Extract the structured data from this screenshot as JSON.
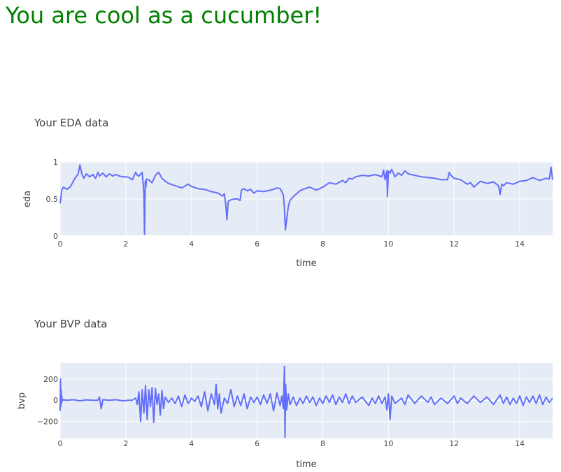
{
  "headline": {
    "text": "You are cool as a cucumber!",
    "color": "#008000"
  },
  "colors": {
    "trace": "#636efa",
    "plot_bg": "#e5ecf6",
    "grid": "#ffffff",
    "text": "#444444"
  },
  "chart_data": [
    {
      "type": "line",
      "title": "Your EDA data",
      "xlabel": "time",
      "ylabel": "eda",
      "xlim": [
        0,
        15
      ],
      "ylim": [
        0,
        1
      ],
      "xticks": [
        0,
        2,
        4,
        6,
        8,
        10,
        12,
        14
      ],
      "xtick_labels": [
        "0",
        "2",
        "4",
        "6",
        "8",
        "10",
        "12",
        "14"
      ],
      "yticks": [
        0,
        0.5,
        1
      ],
      "ytick_labels": [
        "0",
        "0.5",
        "1"
      ],
      "grid": true,
      "x": [
        0,
        0.05,
        0.1,
        0.2,
        0.3,
        0.38,
        0.45,
        0.55,
        0.6,
        0.66,
        0.72,
        0.8,
        0.9,
        1.0,
        1.08,
        1.15,
        1.2,
        1.3,
        1.4,
        1.5,
        1.6,
        1.7,
        1.8,
        1.9,
        2.0,
        2.1,
        2.2,
        2.3,
        2.35,
        2.4,
        2.5,
        2.55,
        2.57,
        2.59,
        2.61,
        2.63,
        2.7,
        2.8,
        2.9,
        3.0,
        3.1,
        3.2,
        3.3,
        3.5,
        3.7,
        3.9,
        4.0,
        4.2,
        4.4,
        4.6,
        4.8,
        4.95,
        5.0,
        5.05,
        5.08,
        5.12,
        5.2,
        5.3,
        5.4,
        5.48,
        5.52,
        5.6,
        5.7,
        5.8,
        5.9,
        6.0,
        6.2,
        6.4,
        6.5,
        6.6,
        6.7,
        6.75,
        6.8,
        6.83,
        6.86,
        6.9,
        6.95,
        7.0,
        7.1,
        7.2,
        7.3,
        7.4,
        7.6,
        7.8,
        8.0,
        8.2,
        8.4,
        8.6,
        8.7,
        8.8,
        8.9,
        9.0,
        9.2,
        9.4,
        9.6,
        9.8,
        9.85,
        9.9,
        9.95,
        9.97,
        10.0,
        10.05,
        10.1,
        10.2,
        10.3,
        10.4,
        10.5,
        10.6,
        10.8,
        11.0,
        11.2,
        11.4,
        11.6,
        11.8,
        11.85,
        11.9,
        12.0,
        12.2,
        12.4,
        12.5,
        12.6,
        12.8,
        13.0,
        13.2,
        13.35,
        13.4,
        13.45,
        13.5,
        13.6,
        13.8,
        14.0,
        14.2,
        14.4,
        14.6,
        14.8,
        14.9,
        14.95,
        15.0
      ],
      "series": [
        {
          "values": [
            0.44,
            0.62,
            0.66,
            0.63,
            0.66,
            0.72,
            0.78,
            0.84,
            0.96,
            0.84,
            0.78,
            0.84,
            0.8,
            0.83,
            0.78,
            0.86,
            0.81,
            0.85,
            0.8,
            0.84,
            0.81,
            0.83,
            0.81,
            0.8,
            0.8,
            0.79,
            0.76,
            0.86,
            0.82,
            0.81,
            0.86,
            0.58,
            0.02,
            0.74,
            0.66,
            0.77,
            0.76,
            0.72,
            0.82,
            0.86,
            0.78,
            0.74,
            0.71,
            0.68,
            0.65,
            0.7,
            0.67,
            0.64,
            0.63,
            0.6,
            0.58,
            0.54,
            0.57,
            0.4,
            0.22,
            0.47,
            0.49,
            0.5,
            0.5,
            0.48,
            0.62,
            0.64,
            0.61,
            0.63,
            0.58,
            0.61,
            0.6,
            0.62,
            0.63,
            0.65,
            0.64,
            0.6,
            0.55,
            0.38,
            0.08,
            0.22,
            0.4,
            0.48,
            0.53,
            0.57,
            0.61,
            0.63,
            0.66,
            0.62,
            0.66,
            0.72,
            0.7,
            0.75,
            0.72,
            0.78,
            0.77,
            0.8,
            0.82,
            0.81,
            0.83,
            0.8,
            0.89,
            0.76,
            0.88,
            0.53,
            0.88,
            0.85,
            0.9,
            0.8,
            0.85,
            0.82,
            0.88,
            0.84,
            0.82,
            0.8,
            0.79,
            0.78,
            0.76,
            0.76,
            0.86,
            0.82,
            0.78,
            0.76,
            0.7,
            0.72,
            0.66,
            0.74,
            0.71,
            0.73,
            0.68,
            0.56,
            0.7,
            0.68,
            0.72,
            0.7,
            0.74,
            0.75,
            0.79,
            0.75,
            0.78,
            0.77,
            0.93,
            0.76
          ]
        }
      ]
    },
    {
      "type": "line",
      "title": "Your BVP data",
      "xlabel": "time",
      "ylabel": "bvp",
      "xlim": [
        0,
        15
      ],
      "ylim": [
        -360,
        350
      ],
      "xticks": [
        0,
        2,
        4,
        6,
        8,
        10,
        12,
        14
      ],
      "xtick_labels": [
        "0",
        "2",
        "4",
        "6",
        "8",
        "10",
        "12",
        "14"
      ],
      "yticks": [
        -200,
        0,
        200
      ],
      "ytick_labels": [
        "−200",
        "0",
        "200"
      ],
      "grid": true,
      "x": [
        0,
        0.01,
        0.02,
        0.03,
        0.04,
        0.05,
        0.06,
        0.08,
        0.2,
        0.4,
        0.6,
        0.8,
        1.0,
        1.15,
        1.2,
        1.25,
        1.3,
        1.5,
        1.7,
        1.9,
        2.1,
        2.2,
        2.3,
        2.35,
        2.4,
        2.45,
        2.5,
        2.55,
        2.6,
        2.65,
        2.7,
        2.75,
        2.8,
        2.85,
        2.9,
        2.95,
        3.0,
        3.05,
        3.1,
        3.15,
        3.2,
        3.3,
        3.4,
        3.5,
        3.6,
        3.7,
        3.8,
        3.9,
        4.0,
        4.1,
        4.2,
        4.3,
        4.4,
        4.5,
        4.6,
        4.7,
        4.75,
        4.8,
        4.85,
        4.9,
        5.0,
        5.1,
        5.2,
        5.3,
        5.4,
        5.5,
        5.6,
        5.7,
        5.8,
        5.9,
        6.0,
        6.1,
        6.2,
        6.3,
        6.4,
        6.5,
        6.6,
        6.7,
        6.75,
        6.8,
        6.83,
        6.85,
        6.87,
        6.9,
        6.95,
        7.0,
        7.1,
        7.2,
        7.3,
        7.4,
        7.5,
        7.6,
        7.7,
        7.8,
        7.9,
        8.0,
        8.1,
        8.2,
        8.3,
        8.4,
        8.5,
        8.6,
        8.7,
        8.8,
        8.9,
        9.0,
        9.2,
        9.4,
        9.5,
        9.6,
        9.7,
        9.8,
        9.9,
        9.95,
        10.0,
        10.05,
        10.1,
        10.2,
        10.4,
        10.5,
        10.6,
        10.8,
        11.0,
        11.2,
        11.3,
        11.4,
        11.6,
        11.8,
        12.0,
        12.1,
        12.2,
        12.4,
        12.6,
        12.8,
        13.0,
        13.2,
        13.4,
        13.5,
        13.6,
        13.7,
        13.8,
        13.9,
        14.0,
        14.1,
        14.2,
        14.3,
        14.4,
        14.5,
        14.6,
        14.7,
        14.8,
        14.9,
        15.0
      ],
      "series": [
        {
          "values": [
            -100,
            200,
            -60,
            100,
            -30,
            40,
            -10,
            5,
            0,
            5,
            -5,
            3,
            0,
            0,
            30,
            -80,
            5,
            0,
            5,
            -5,
            0,
            0,
            20,
            -40,
            80,
            -200,
            100,
            -120,
            140,
            -180,
            100,
            -60,
            120,
            -210,
            110,
            -40,
            60,
            -140,
            90,
            -80,
            30,
            -20,
            20,
            -30,
            40,
            -60,
            50,
            -30,
            20,
            -10,
            40,
            -60,
            80,
            -100,
            60,
            -40,
            150,
            -80,
            60,
            -120,
            20,
            -30,
            100,
            -60,
            40,
            -50,
            60,
            -80,
            30,
            -20,
            30,
            -40,
            50,
            -30,
            60,
            -100,
            70,
            -50,
            40,
            -80,
            320,
            -350,
            150,
            -90,
            60,
            -40,
            30,
            -50,
            20,
            -30,
            40,
            -20,
            30,
            -50,
            20,
            -30,
            40,
            -20,
            50,
            -40,
            30,
            -20,
            60,
            -30,
            40,
            -20,
            30,
            -50,
            20,
            -30,
            40,
            -30,
            30,
            -90,
            60,
            -180,
            40,
            -30,
            20,
            -40,
            50,
            -30,
            40,
            -20,
            30,
            -40,
            20,
            -30,
            40,
            -30,
            20,
            -30,
            40,
            -20,
            30,
            -40,
            50,
            -30,
            30,
            -40,
            20,
            -30,
            40,
            -50,
            30,
            -20,
            40,
            -30,
            50,
            -40,
            30,
            -20,
            20
          ]
        }
      ]
    }
  ]
}
